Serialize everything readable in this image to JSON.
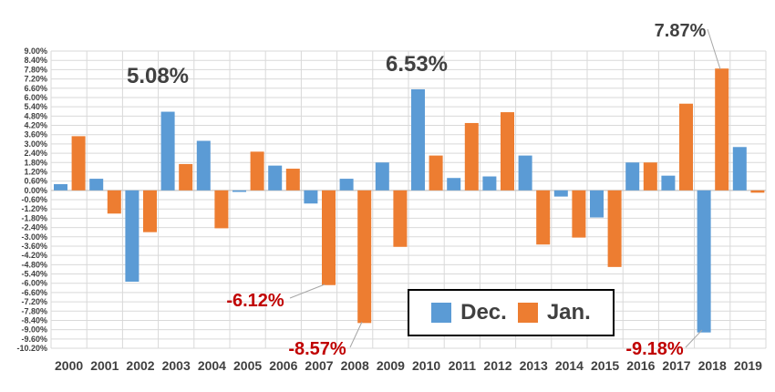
{
  "chart_data": {
    "type": "bar",
    "categories": [
      "2000",
      "2001",
      "2002",
      "2003",
      "2004",
      "2005",
      "2006",
      "2007",
      "2008",
      "2009",
      "2010",
      "2011",
      "2012",
      "2013",
      "2014",
      "2015",
      "2016",
      "2017",
      "2018",
      "2019"
    ],
    "series": [
      {
        "name": "Dec.",
        "color": "#5B9BD5",
        "values": [
          0.4,
          0.75,
          -5.9,
          5.08,
          3.2,
          -0.1,
          1.6,
          -0.85,
          0.75,
          1.8,
          6.53,
          0.8,
          0.9,
          2.25,
          -0.4,
          -1.75,
          1.8,
          0.95,
          -9.18,
          2.8
        ]
      },
      {
        "name": "Jan.",
        "color": "#ED7D31",
        "values": [
          3.5,
          -1.5,
          -2.7,
          1.7,
          -2.45,
          2.5,
          1.4,
          -6.12,
          -8.57,
          -3.65,
          2.25,
          4.35,
          5.05,
          -3.5,
          -3.05,
          -4.95,
          1.8,
          5.6,
          7.87,
          -0.15
        ]
      }
    ],
    "yticks": [
      "9.00%",
      "8.40%",
      "7.80%",
      "7.20%",
      "6.60%",
      "6.00%",
      "5.40%",
      "4.80%",
      "4.20%",
      "3.60%",
      "3.00%",
      "2.40%",
      "1.80%",
      "1.20%",
      "0.60%",
      "0.00%",
      "-0.60%",
      "-1.20%",
      "-1.80%",
      "-2.40%",
      "-3.00%",
      "-3.60%",
      "-4.20%",
      "-4.80%",
      "-5.40%",
      "-6.00%",
      "-6.60%",
      "-7.20%",
      "-7.80%",
      "-8.40%",
      "-9.00%",
      "-9.60%",
      "-10.20%"
    ],
    "ylim": [
      -10.2,
      9.0
    ],
    "grid": true,
    "legend_placement": "bottom-right",
    "annotations": [
      {
        "text": "5.08%",
        "category": "2003",
        "series": "Dec.",
        "color": "#404040"
      },
      {
        "text": "6.53%",
        "category": "2010",
        "series": "Dec.",
        "color": "#404040"
      },
      {
        "text": "7.87%",
        "category": "2018",
        "series": "Jan.",
        "color": "#404040"
      },
      {
        "text": "-6.12%",
        "category": "2007",
        "series": "Jan.",
        "color": "#C00000"
      },
      {
        "text": "-8.57%",
        "category": "2008",
        "series": "Jan.",
        "color": "#C00000"
      },
      {
        "text": "-9.18%",
        "category": "2018",
        "series": "Dec.",
        "color": "#C00000"
      }
    ]
  }
}
